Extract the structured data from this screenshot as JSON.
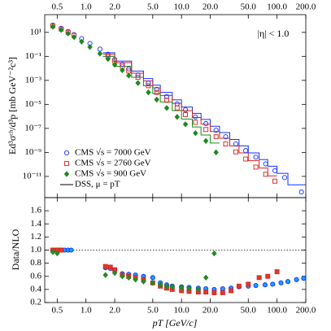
{
  "chart_data": {
    "type": "scatter",
    "ylabel": "Ed³σᶜʰ/d³p [mb GeV⁻²c³]",
    "xlabel": "pT [GeV/c]",
    "annotation": "|η| < 1.0",
    "log_x": true,
    "log_y": true,
    "xlim": [
      0.37,
      200
    ],
    "xticks": [
      0.5,
      {
        "value": 1,
        "label": "1.0"
      },
      {
        "value": 2,
        "label": "2.0"
      },
      {
        "value": 5,
        "label": "5.0"
      },
      {
        "value": 10,
        "label": "10.0"
      },
      {
        "value": 20,
        "label": "20.0"
      },
      {
        "value": 50,
        "label": "50.0"
      },
      {
        "value": 100,
        "label": "100.0"
      },
      {
        "value": 200,
        "label": "200.0"
      }
    ],
    "ylim": [
      1.7e-13,
      300
    ],
    "yticks": [
      {
        "value": 10,
        "label": "10¹"
      },
      {
        "value": 0.1,
        "label": "10⁻¹"
      },
      {
        "value": 0.001,
        "label": "10⁻³"
      },
      {
        "value": 1e-05,
        "label": "10⁻⁵"
      },
      {
        "value": 1e-07,
        "label": "10⁻⁷"
      },
      {
        "value": 1e-09,
        "label": "10⁻⁹"
      },
      {
        "value": 1e-11,
        "label": "10⁻¹¹"
      }
    ],
    "legend": "lower left",
    "series": [
      {
        "name": "CMS √s = 7000 GeV",
        "color": "#1030ff",
        "marker": "circle",
        "x": [
          0.45,
          0.55,
          0.65,
          0.75,
          0.9,
          1.1,
          1.4,
          1.7,
          2.0,
          2.4,
          2.8,
          3.5,
          4.5,
          5.5,
          7,
          9,
          11,
          14,
          18,
          23,
          29,
          37,
          47,
          60,
          76,
          95,
          120,
          180
        ],
        "values": [
          40,
          22,
          12,
          6.5,
          3,
          1.2,
          0.4,
          0.15,
          0.055,
          0.022,
          0.009,
          0.0028,
          0.0006,
          0.00018,
          4.5e-05,
          1.1e-05,
          3.5e-06,
          9e-07,
          2.5e-07,
          7e-08,
          2e-08,
          5e-09,
          1.4e-09,
          4e-10,
          1.1e-10,
          3e-11,
          8e-12,
          5e-13
        ]
      },
      {
        "name": "CMS √s = 2760 GeV",
        "color": "#d62020",
        "marker": "square",
        "x": [
          0.45,
          0.55,
          0.65,
          0.75,
          1.7,
          2.0,
          2.4,
          2.8,
          3.5,
          4.5,
          5.5,
          7,
          9,
          11,
          14,
          18,
          23,
          29,
          37,
          47,
          60,
          76,
          95
        ],
        "values": [
          35,
          19,
          10,
          5.5,
          0.11,
          0.04,
          0.015,
          0.006,
          0.0018,
          0.00036,
          0.0001,
          2.2e-05,
          5e-06,
          1.4e-06,
          3.2e-07,
          8e-08,
          2e-08,
          5e-09,
          1.1e-09,
          2.8e-10,
          6e-11,
          1.5e-11,
          4e-12
        ]
      },
      {
        "name": "CMS √s = 900 GeV",
        "color": "#1a8a1a",
        "marker": "diamond",
        "x": [
          0.45,
          0.55,
          0.65,
          0.75,
          0.9,
          1.1,
          1.4,
          1.7,
          2.0,
          2.4,
          2.8,
          3.5,
          4.5,
          5.5,
          7,
          9,
          11,
          14,
          18,
          23
        ],
        "values": [
          30,
          16,
          8,
          4,
          1.7,
          0.6,
          0.17,
          0.06,
          0.02,
          0.007,
          0.0025,
          0.0006,
          0.0001,
          2.5e-05,
          5e-06,
          9e-07,
          2.2e-07,
          4e-08,
          9e-09,
          1e-09
        ]
      }
    ],
    "model": {
      "name": "DSS, μ = pT",
      "color": "#000000",
      "curves": [
        {
          "color": "#1030ff",
          "bins": [
            1.5,
            2,
            3,
            4,
            5,
            6,
            8,
            10,
            13,
            16,
            20,
            25,
            32,
            40,
            50,
            65,
            80,
            100,
            130,
            200
          ],
          "values": [
            0.2,
            0.04,
            0.006,
            0.0014,
            0.0004,
            0.0001,
            2.4e-05,
            6e-06,
            1.8e-06,
            5.5e-07,
            1.5e-07,
            4.5e-08,
            1.2e-08,
            3.5e-09,
            9e-10,
            2.5e-10,
            7e-11,
            1.8e-11,
            2e-12
          ]
        },
        {
          "color": "#d62020",
          "bins": [
            1.5,
            2,
            3,
            4,
            5,
            6,
            8,
            10,
            13,
            16,
            20,
            25,
            32,
            40,
            50,
            65,
            80,
            100
          ],
          "values": [
            0.15,
            0.03,
            0.004,
            0.0009,
            0.00024,
            5.5e-05,
            1.2e-05,
            3e-06,
            8e-07,
            2.2e-07,
            5.5e-08,
            1.5e-08,
            3.5e-09,
            9e-10,
            2e-10,
            5e-11,
            1.1e-11
          ]
        },
        {
          "color": "#1a8a1a",
          "bins": [
            1.5,
            2,
            3,
            4,
            5,
            6,
            8,
            10,
            13,
            16,
            20,
            25
          ],
          "values": [
            0.1,
            0.015,
            0.0018,
            0.00035,
            8e-05,
            1.6e-05,
            3e-06,
            6e-07,
            1.3e-07,
            2.8e-08,
            6e-09
          ]
        }
      ]
    },
    "ratio": {
      "ylabel": "Data/NLO",
      "ylim": [
        0.2,
        1.8
      ],
      "yticks": [
        0.2,
        0.4,
        0.6,
        0.8,
        {
          "value": 1,
          "label": "1.0"
        },
        1.2,
        1.4,
        1.6
      ],
      "reference_line": 1,
      "series": [
        {
          "color": "#1aa0ff",
          "x": [
            0.45,
            0.5,
            0.55,
            0.6,
            0.65,
            0.7,
            1.6,
            1.8,
            2.0,
            2.4,
            2.8,
            3.3,
            4,
            5,
            6,
            7,
            8,
            10,
            12,
            15,
            18,
            22,
            27,
            33,
            40,
            50,
            60,
            75,
            90,
            110,
            130,
            160,
            190
          ],
          "values": [
            1,
            1,
            1,
            1,
            1,
            1,
            0.73,
            0.72,
            0.7,
            0.64,
            0.63,
            0.62,
            0.6,
            0.58,
            0.5,
            0.47,
            0.45,
            0.44,
            0.43,
            0.42,
            0.41,
            0.4,
            0.41,
            0.42,
            0.44,
            0.45,
            0.46,
            0.47,
            0.48,
            0.5,
            0.52,
            0.55,
            0.57
          ]
        },
        {
          "color": "#e03a2a",
          "x": [
            0.45,
            0.5,
            0.55,
            1.6,
            1.8,
            2.0,
            2.4,
            2.8,
            3.3,
            4,
            5,
            6,
            7,
            8,
            10,
            12,
            15,
            18,
            22,
            27,
            33,
            40,
            50,
            65,
            80,
            100
          ],
          "values": [
            1,
            1,
            1,
            0.75,
            0.74,
            0.7,
            0.62,
            0.6,
            0.58,
            0.55,
            0.5,
            0.45,
            0.42,
            0.4,
            0.38,
            0.37,
            0.36,
            0.36,
            0.35,
            0.35,
            0.38,
            0.45,
            0.48,
            0.58,
            0.6,
            0.67
          ]
        },
        {
          "color": "#2a8a2a",
          "x": [
            0.45,
            0.5,
            1.6,
            2.0,
            2.4,
            2.8,
            3.3,
            4,
            5,
            6,
            7,
            8,
            10,
            12,
            15,
            18,
            22
          ],
          "values": [
            0.97,
            0.95,
            0.62,
            0.65,
            0.6,
            0.58,
            0.55,
            0.52,
            0.5,
            0.47,
            0.45,
            0.44,
            0.43,
            0.42,
            0.4,
            0.58,
            0.95
          ]
        }
      ]
    }
  }
}
